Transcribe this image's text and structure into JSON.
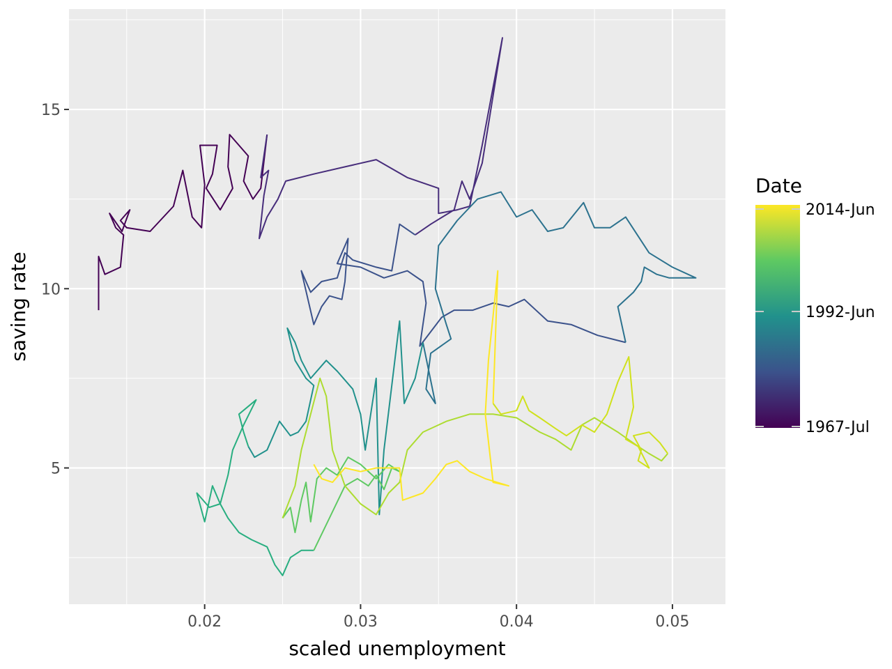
{
  "chart_data": {
    "type": "line",
    "title": "",
    "xlabel": "scaled unemployment",
    "ylabel": "saving rate",
    "xlim": [
      0.0113,
      0.0534
    ],
    "ylim": [
      1.2,
      17.8
    ],
    "xticks": [
      0.02,
      0.03,
      0.04,
      0.05
    ],
    "xtick_labels": [
      "0.02",
      "0.03",
      "0.04",
      "0.05"
    ],
    "yticks": [
      5,
      10,
      15
    ],
    "ytick_labels": [
      "5",
      "10",
      "15"
    ],
    "grid": true,
    "legend": {
      "title": "Date",
      "placement": "right",
      "labels": [
        "2014-Jun",
        "1992-Jun",
        "1967-Jul"
      ],
      "colormap": "viridis",
      "colors": [
        "#440154",
        "#3b528b",
        "#21918c",
        "#5ec962",
        "#fde725"
      ]
    },
    "path_segments": [
      {
        "color": "#440154",
        "points": [
          [
            0.0132,
            9.4
          ],
          [
            0.0132,
            10.9
          ],
          [
            0.0136,
            10.4
          ],
          [
            0.0146,
            10.6
          ],
          [
            0.0148,
            11.5
          ],
          [
            0.0143,
            11.7
          ],
          [
            0.0139,
            12.1
          ],
          [
            0.0147,
            11.6
          ],
          [
            0.0152,
            12.2
          ],
          [
            0.0146,
            11.9
          ],
          [
            0.015,
            11.7
          ],
          [
            0.0165,
            11.6
          ],
          [
            0.018,
            12.3
          ],
          [
            0.0186,
            13.3
          ],
          [
            0.0192,
            12.0
          ],
          [
            0.0198,
            11.7
          ],
          [
            0.02,
            12.9
          ],
          [
            0.0197,
            14.0
          ],
          [
            0.0208,
            14.0
          ],
          [
            0.0205,
            13.2
          ],
          [
            0.0201,
            12.8
          ],
          [
            0.021,
            12.2
          ],
          [
            0.0218,
            12.8
          ],
          [
            0.0215,
            13.4
          ],
          [
            0.0216,
            14.3
          ],
          [
            0.0222,
            14.0
          ],
          [
            0.0228,
            13.7
          ],
          [
            0.0225,
            13.0
          ],
          [
            0.0231,
            12.5
          ],
          [
            0.0236,
            12.8
          ],
          [
            0.024,
            14.3
          ]
        ]
      },
      {
        "color": "#472d7b",
        "points": [
          [
            0.024,
            14.3
          ],
          [
            0.0236,
            13.1
          ],
          [
            0.0241,
            13.3
          ],
          [
            0.0238,
            12.6
          ],
          [
            0.0235,
            11.4
          ],
          [
            0.024,
            12.0
          ],
          [
            0.0247,
            12.5
          ],
          [
            0.0252,
            13.0
          ],
          [
            0.027,
            13.2
          ],
          [
            0.029,
            13.4
          ],
          [
            0.031,
            13.6
          ],
          [
            0.033,
            13.1
          ],
          [
            0.035,
            12.8
          ],
          [
            0.035,
            12.1
          ],
          [
            0.0362,
            12.2
          ],
          [
            0.037,
            12.3
          ],
          [
            0.0378,
            14.0
          ],
          [
            0.0391,
            17.0
          ],
          [
            0.0378,
            13.5
          ],
          [
            0.037,
            12.5
          ],
          [
            0.0365,
            13.0
          ],
          [
            0.036,
            12.2
          ],
          [
            0.0345,
            11.8
          ],
          [
            0.0335,
            11.5
          ]
        ]
      },
      {
        "color": "#3b528b",
        "points": [
          [
            0.0335,
            11.5
          ],
          [
            0.0325,
            11.8
          ],
          [
            0.032,
            10.5
          ],
          [
            0.031,
            10.6
          ],
          [
            0.0295,
            10.8
          ],
          [
            0.029,
            11.0
          ],
          [
            0.0285,
            10.3
          ],
          [
            0.0275,
            10.2
          ],
          [
            0.0268,
            9.9
          ],
          [
            0.0262,
            10.5
          ],
          [
            0.027,
            9.0
          ],
          [
            0.0275,
            9.5
          ],
          [
            0.028,
            9.8
          ],
          [
            0.0288,
            9.7
          ],
          [
            0.029,
            10.2
          ],
          [
            0.0292,
            11.4
          ],
          [
            0.0285,
            10.7
          ],
          [
            0.03,
            10.6
          ],
          [
            0.0315,
            10.3
          ],
          [
            0.033,
            10.5
          ],
          [
            0.034,
            10.2
          ],
          [
            0.0342,
            9.6
          ],
          [
            0.0338,
            8.4
          ],
          [
            0.0345,
            8.8
          ],
          [
            0.0352,
            9.2
          ],
          [
            0.036,
            9.4
          ],
          [
            0.0372,
            9.4
          ],
          [
            0.0385,
            9.6
          ],
          [
            0.0395,
            9.5
          ],
          [
            0.0405,
            9.7
          ],
          [
            0.042,
            9.1
          ],
          [
            0.0435,
            9.0
          ],
          [
            0.0452,
            8.7
          ],
          [
            0.047,
            8.5
          ]
        ]
      },
      {
        "color": "#2c728e",
        "points": [
          [
            0.047,
            8.5
          ],
          [
            0.0465,
            9.5
          ],
          [
            0.0475,
            9.9
          ],
          [
            0.048,
            10.2
          ],
          [
            0.0482,
            10.6
          ],
          [
            0.049,
            10.4
          ],
          [
            0.0498,
            10.3
          ],
          [
            0.0515,
            10.3
          ],
          [
            0.05,
            10.6
          ],
          [
            0.0485,
            11.0
          ],
          [
            0.047,
            12.0
          ],
          [
            0.046,
            11.7
          ],
          [
            0.045,
            11.7
          ],
          [
            0.0443,
            12.4
          ],
          [
            0.043,
            11.7
          ],
          [
            0.042,
            11.6
          ],
          [
            0.041,
            12.2
          ],
          [
            0.04,
            12.0
          ],
          [
            0.039,
            12.7
          ],
          [
            0.0375,
            12.5
          ],
          [
            0.0362,
            11.9
          ],
          [
            0.035,
            11.2
          ],
          [
            0.0348,
            10.0
          ],
          [
            0.0355,
            9.0
          ],
          [
            0.0358,
            8.6
          ],
          [
            0.0345,
            8.2
          ],
          [
            0.0342,
            7.2
          ],
          [
            0.0348,
            6.8
          ],
          [
            0.034,
            8.5
          ]
        ]
      },
      {
        "color": "#21918c",
        "points": [
          [
            0.034,
            8.5
          ],
          [
            0.0335,
            7.5
          ],
          [
            0.0328,
            6.8
          ],
          [
            0.0325,
            9.1
          ],
          [
            0.032,
            7.3
          ],
          [
            0.0315,
            5.5
          ],
          [
            0.0312,
            3.7
          ],
          [
            0.031,
            7.5
          ],
          [
            0.0303,
            5.5
          ],
          [
            0.03,
            6.5
          ],
          [
            0.0295,
            7.2
          ],
          [
            0.0285,
            7.7
          ],
          [
            0.0278,
            8.0
          ],
          [
            0.0268,
            7.5
          ],
          [
            0.0262,
            8.0
          ],
          [
            0.0258,
            8.5
          ],
          [
            0.0253,
            8.9
          ],
          [
            0.0258,
            8.0
          ],
          [
            0.0265,
            7.5
          ],
          [
            0.027,
            7.3
          ],
          [
            0.0265,
            6.3
          ],
          [
            0.026,
            6.0
          ],
          [
            0.0255,
            5.9
          ],
          [
            0.0248,
            6.3
          ],
          [
            0.024,
            5.5
          ],
          [
            0.0232,
            5.3
          ],
          [
            0.0228,
            5.6
          ]
        ]
      },
      {
        "color": "#28ae80",
        "points": [
          [
            0.0228,
            5.6
          ],
          [
            0.0225,
            6.0
          ],
          [
            0.0222,
            6.5
          ],
          [
            0.0233,
            6.9
          ],
          [
            0.0225,
            6.2
          ],
          [
            0.0218,
            5.5
          ],
          [
            0.0215,
            4.8
          ],
          [
            0.021,
            4.0
          ],
          [
            0.0205,
            4.5
          ],
          [
            0.02,
            3.5
          ],
          [
            0.0195,
            4.3
          ],
          [
            0.0203,
            3.9
          ],
          [
            0.021,
            4.0
          ],
          [
            0.0215,
            3.6
          ],
          [
            0.0222,
            3.2
          ],
          [
            0.023,
            3.0
          ],
          [
            0.024,
            2.8
          ],
          [
            0.0245,
            2.3
          ],
          [
            0.025,
            2.0
          ],
          [
            0.0255,
            2.5
          ],
          [
            0.0262,
            2.7
          ],
          [
            0.027,
            2.7
          ]
        ]
      },
      {
        "color": "#5ec962",
        "points": [
          [
            0.027,
            2.7
          ],
          [
            0.028,
            3.6
          ],
          [
            0.029,
            4.5
          ],
          [
            0.0298,
            4.7
          ],
          [
            0.0305,
            4.5
          ],
          [
            0.031,
            4.8
          ],
          [
            0.0315,
            4.4
          ],
          [
            0.032,
            5.0
          ],
          [
            0.0325,
            4.9
          ],
          [
            0.0318,
            5.1
          ],
          [
            0.031,
            4.7
          ],
          [
            0.03,
            5.1
          ],
          [
            0.0292,
            5.3
          ],
          [
            0.0285,
            4.8
          ],
          [
            0.0278,
            5.0
          ],
          [
            0.0272,
            4.7
          ],
          [
            0.0268,
            3.5
          ],
          [
            0.0265,
            4.6
          ],
          [
            0.0262,
            4.1
          ],
          [
            0.0258,
            3.2
          ],
          [
            0.0255,
            3.9
          ],
          [
            0.025,
            3.6
          ]
        ]
      },
      {
        "color": "#addc30",
        "points": [
          [
            0.025,
            3.6
          ],
          [
            0.0258,
            4.5
          ],
          [
            0.0262,
            5.5
          ],
          [
            0.0268,
            6.5
          ],
          [
            0.0274,
            7.5
          ],
          [
            0.0278,
            7.0
          ],
          [
            0.0282,
            5.5
          ],
          [
            0.029,
            4.5
          ],
          [
            0.03,
            4.0
          ],
          [
            0.031,
            3.7
          ],
          [
            0.0318,
            4.3
          ],
          [
            0.0325,
            4.6
          ],
          [
            0.033,
            5.5
          ],
          [
            0.034,
            6.0
          ],
          [
            0.0355,
            6.3
          ],
          [
            0.037,
            6.5
          ],
          [
            0.0385,
            6.5
          ],
          [
            0.04,
            6.4
          ],
          [
            0.0415,
            6.0
          ],
          [
            0.0425,
            5.8
          ],
          [
            0.0435,
            5.5
          ],
          [
            0.0442,
            6.2
          ],
          [
            0.045,
            6.4
          ],
          [
            0.0465,
            6.0
          ],
          [
            0.0478,
            5.6
          ],
          [
            0.0485,
            5.4
          ],
          [
            0.0493,
            5.2
          ],
          [
            0.0497,
            5.4
          ]
        ]
      },
      {
        "color": "#d0e11c",
        "points": [
          [
            0.0497,
            5.4
          ],
          [
            0.0492,
            5.7
          ],
          [
            0.0485,
            6.0
          ],
          [
            0.0475,
            5.9
          ],
          [
            0.048,
            5.5
          ],
          [
            0.0478,
            5.2
          ],
          [
            0.0485,
            5.0
          ],
          [
            0.0478,
            5.6
          ],
          [
            0.047,
            5.8
          ],
          [
            0.0475,
            6.7
          ],
          [
            0.0472,
            8.1
          ],
          [
            0.0465,
            7.4
          ],
          [
            0.0458,
            6.5
          ],
          [
            0.045,
            6.0
          ],
          [
            0.0442,
            6.2
          ],
          [
            0.0432,
            5.9
          ],
          [
            0.0425,
            6.1
          ],
          [
            0.0415,
            6.4
          ],
          [
            0.0408,
            6.6
          ],
          [
            0.0404,
            7.0
          ],
          [
            0.04,
            6.6
          ],
          [
            0.039,
            6.5
          ],
          [
            0.0385,
            6.8
          ]
        ]
      },
      {
        "color": "#fde725",
        "points": [
          [
            0.0385,
            6.8
          ],
          [
            0.0388,
            10.5
          ],
          [
            0.0382,
            8.0
          ],
          [
            0.038,
            6.5
          ],
          [
            0.0385,
            4.6
          ],
          [
            0.0395,
            4.5
          ],
          [
            0.038,
            4.7
          ],
          [
            0.037,
            4.9
          ],
          [
            0.0362,
            5.2
          ],
          [
            0.0355,
            5.1
          ],
          [
            0.0348,
            4.7
          ],
          [
            0.034,
            4.3
          ],
          [
            0.0327,
            4.1
          ],
          [
            0.0325,
            5.0
          ],
          [
            0.031,
            5.0
          ],
          [
            0.03,
            4.9
          ],
          [
            0.029,
            5.0
          ],
          [
            0.0282,
            4.6
          ],
          [
            0.0275,
            4.7
          ],
          [
            0.027,
            5.1
          ]
        ]
      }
    ]
  }
}
